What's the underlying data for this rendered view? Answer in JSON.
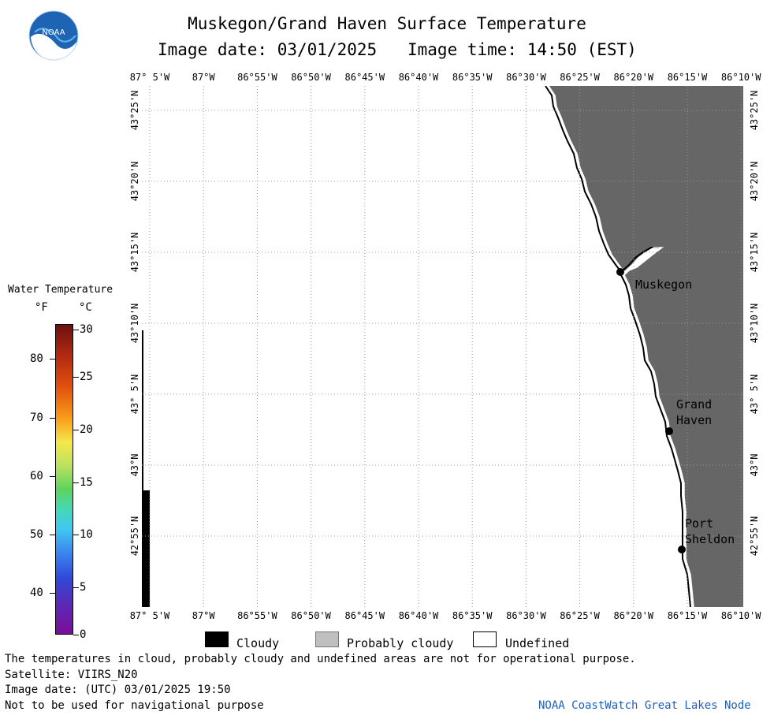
{
  "logo_text": "NOAA",
  "title_line1": "Muskegon/Grand Haven Surface Temperature",
  "image_date_label": "Image date: 03/01/2025",
  "image_time_label": "Image time: 14:50 (EST)",
  "longitude_ticks": [
    "87° 5'W",
    "87°W",
    "86°55'W",
    "86°50'W",
    "86°45'W",
    "86°40'W",
    "86°35'W",
    "86°30'W",
    "86°25'W",
    "86°20'W",
    "86°15'W",
    "86°10'W"
  ],
  "latitude_ticks": [
    "43°25'N",
    "43°20'N",
    "43°15'N",
    "43°10'N",
    "43° 5'N",
    "43°N",
    "42°55'N"
  ],
  "colorbar": {
    "title": "Water Temperature",
    "unit_f": "°F",
    "unit_c": "°C",
    "f_ticks": [
      "80",
      "70",
      "60",
      "50",
      "40"
    ],
    "c_ticks": [
      "30",
      "25",
      "20",
      "15",
      "10",
      "5",
      "0"
    ]
  },
  "cities": [
    {
      "name_lines": [
        "Muskegon"
      ]
    },
    {
      "name_lines": [
        "Grand",
        "Haven"
      ]
    },
    {
      "name_lines": [
        "Port",
        "Sheldon"
      ]
    }
  ],
  "legend": {
    "cloudy": "Cloudy",
    "probably_cloudy": "Probably cloudy",
    "undefined": "Undefined"
  },
  "footer": {
    "note": "The temperatures in cloud, probably cloudy and undefined areas are not for operational purpose.",
    "satellite": "Satellite: VIIRS_N20",
    "utc_date": "Image date: (UTC) 03/01/2025  19:50",
    "nav_warning": "Not to be used for navigational purpose",
    "credit": "NOAA CoastWatch Great Lakes Node"
  },
  "colors": {
    "land": "#666666",
    "water": "#ffffff",
    "cloudy": "#000000",
    "probably_cloudy": "#bfbfbf",
    "credit": "#1f5fbf"
  }
}
